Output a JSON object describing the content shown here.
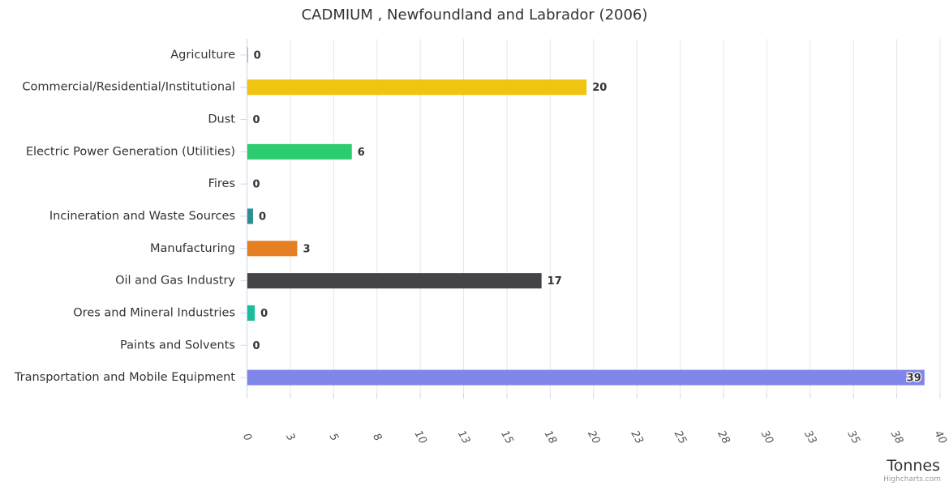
{
  "chart_data": {
    "type": "bar",
    "orientation": "horizontal",
    "title": "CADMIUM , Newfoundland and Labrador (2006)",
    "xlabel": "",
    "ylabel": "Tonnes",
    "categories": [
      "Agriculture",
      "Commercial/Residential/Institutional",
      "Dust",
      "Electric Power Generation (Utilities)",
      "Fires",
      "Incineration and Waste Sources",
      "Manufacturing",
      "Oil and Gas Industry",
      "Ores and Mineral Industries",
      "Paints and Solvents",
      "Transportation and Mobile Equipment"
    ],
    "values": [
      0.05,
      19.6,
      0,
      6.05,
      0,
      0.35,
      2.9,
      17.0,
      0.45,
      0,
      39.1
    ],
    "data_labels": [
      "0",
      "20",
      "0",
      "6",
      "0",
      "0",
      "3",
      "17",
      "0",
      "0",
      "39"
    ],
    "colors": [
      "#e5419a",
      "#f1c40f",
      "#7cb5ec",
      "#2ecc71",
      "#7cb5ec",
      "#2b908f",
      "#e67e22",
      "#434348",
      "#1abc9c",
      "#7cb5ec",
      "#8085e9"
    ],
    "xlim": [
      0,
      40
    ],
    "tick_labels": [
      "0",
      "3",
      "5",
      "8",
      "10",
      "13",
      "15",
      "18",
      "20",
      "23",
      "25",
      "28",
      "30",
      "33",
      "35",
      "38",
      "40"
    ],
    "grid": true,
    "credits": "Highcharts.com"
  }
}
